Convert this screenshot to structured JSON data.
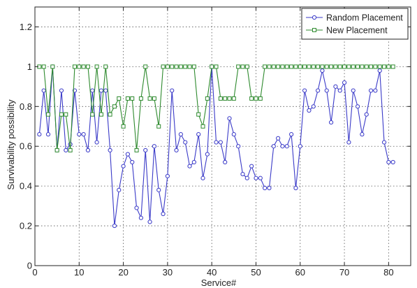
{
  "chart_data": {
    "type": "line",
    "title": "",
    "xlabel": "Service#",
    "ylabel": "Survivability possibility",
    "xlim": [
      0,
      85
    ],
    "ylim": [
      0,
      1.3
    ],
    "xticks": [
      "0",
      "10",
      "20",
      "30",
      "40",
      "50",
      "60",
      "70",
      "80"
    ],
    "xtick_values": [
      0,
      10,
      20,
      30,
      40,
      50,
      60,
      70,
      80
    ],
    "yticks": [
      "0",
      "0.2",
      "0.4",
      "0.6",
      "0.8",
      "1",
      "1.2"
    ],
    "ytick_values": [
      0,
      0.2,
      0.4,
      0.6,
      0.8,
      1,
      1.2
    ],
    "grid": true,
    "legend_position": "top-right",
    "x": [
      1,
      2,
      3,
      4,
      5,
      6,
      7,
      8,
      9,
      10,
      11,
      12,
      13,
      14,
      15,
      16,
      17,
      18,
      19,
      20,
      21,
      22,
      23,
      24,
      25,
      26,
      27,
      28,
      29,
      30,
      31,
      32,
      33,
      34,
      35,
      36,
      37,
      38,
      39,
      40,
      41,
      42,
      43,
      44,
      45,
      46,
      47,
      48,
      49,
      50,
      51,
      52,
      53,
      54,
      55,
      56,
      57,
      58,
      59,
      60,
      61,
      62,
      63,
      64,
      65,
      66,
      67,
      68,
      69,
      70,
      71,
      72,
      73,
      74,
      75,
      76,
      77,
      78,
      79,
      80,
      81
    ],
    "series": [
      {
        "name": "Random Placement",
        "color": "#3a3ac8",
        "marker": "circle",
        "values": [
          0.66,
          0.88,
          0.66,
          1.0,
          0.58,
          0.88,
          0.58,
          0.61,
          0.88,
          0.66,
          0.66,
          0.58,
          0.88,
          0.62,
          0.88,
          0.88,
          0.58,
          0.2,
          0.38,
          0.5,
          0.56,
          0.52,
          0.29,
          0.24,
          0.58,
          0.22,
          0.6,
          0.38,
          0.26,
          0.45,
          0.88,
          0.58,
          0.66,
          0.62,
          0.5,
          0.52,
          0.66,
          0.44,
          0.56,
          1.0,
          0.62,
          0.62,
          0.52,
          0.74,
          0.66,
          0.6,
          0.46,
          0.44,
          0.5,
          0.44,
          0.44,
          0.39,
          0.39,
          0.6,
          0.64,
          0.6,
          0.6,
          0.66,
          0.39,
          0.6,
          0.88,
          0.78,
          0.8,
          0.88,
          0.98,
          0.88,
          0.72,
          0.9,
          0.88,
          0.92,
          0.62,
          0.88,
          0.8,
          0.66,
          0.76,
          0.88,
          0.88,
          0.98,
          0.62,
          0.52,
          0.52
        ]
      },
      {
        "name": "New Placement",
        "color": "#2e8a2e",
        "marker": "square",
        "values": [
          1.0,
          1.0,
          0.76,
          1.0,
          0.58,
          0.76,
          0.76,
          0.58,
          1.0,
          1.0,
          1.0,
          1.0,
          0.76,
          1.0,
          0.76,
          1.0,
          0.76,
          0.8,
          0.84,
          0.7,
          0.84,
          0.84,
          0.58,
          0.84,
          1.0,
          0.84,
          0.84,
          0.7,
          1.0,
          1.0,
          1.0,
          1.0,
          1.0,
          1.0,
          1.0,
          1.0,
          0.76,
          0.7,
          0.84,
          1.0,
          1.0,
          0.84,
          0.84,
          0.84,
          0.84,
          1.0,
          1.0,
          1.0,
          0.84,
          0.84,
          0.84,
          1.0,
          1.0,
          1.0,
          1.0,
          1.0,
          1.0,
          1.0,
          1.0,
          1.0,
          1.0,
          1.0,
          1.0,
          1.0,
          1.0,
          1.0,
          1.0,
          1.0,
          1.0,
          1.0,
          1.0,
          1.0,
          1.0,
          1.0,
          1.0,
          1.0,
          1.0,
          1.0,
          1.0,
          1.0,
          1.0
        ]
      }
    ]
  }
}
